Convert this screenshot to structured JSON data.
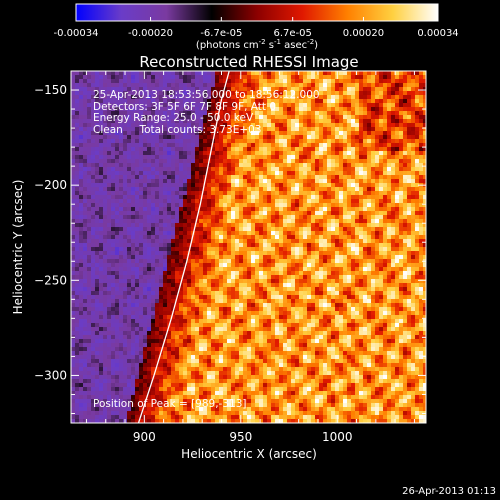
{
  "chart_data": {
    "type": "heatmap",
    "title": "Reconstructed RHESSI Image",
    "xlabel": "Heliocentric X (arcsec)",
    "ylabel": "Heliocentric Y (arcsec)",
    "xlim": [
      862,
      1046
    ],
    "ylim": [
      -325,
      -140
    ],
    "xticks": [
      900,
      950,
      1000
    ],
    "yticks": [
      -150,
      -200,
      -250,
      -300
    ],
    "colorbar": {
      "label": "(photons cm",
      "label_sup1": "-2",
      "label_mid": " s",
      "label_sup2": "-1",
      "label_mid2": " asec",
      "label_sup3": "-2",
      "label_end": ")",
      "min": -0.00034,
      "max": 0.00034,
      "ticks": [
        {
          "value": -0.00034,
          "label": "-0.00034"
        },
        {
          "value": -0.0002,
          "label": "-0.00020"
        },
        {
          "value": -6.7e-05,
          "label": "-6.7e-05"
        },
        {
          "value": 6.7e-05,
          "label": "6.7e-05"
        },
        {
          "value": 0.0002,
          "label": "0.00020"
        },
        {
          "value": 0.00034,
          "label": "0.00034"
        }
      ]
    },
    "annotations": {
      "time_range": "25-Apr-2013 18:53:56.000 to 18:56:12.000",
      "detectors": "Detectors: 3F 5F 6F 7F 8F 9F, Att 0",
      "energy": "Energy Range: 25.0 - 50.0 keV",
      "clean": "Clean     Total counts: 3.73E+03",
      "peak": "Position of Peak = [989,-313]"
    },
    "limb": {
      "points": [
        [
          897,
          -325
        ],
        [
          905,
          -300
        ],
        [
          914,
          -270
        ],
        [
          922,
          -240
        ],
        [
          929,
          -210
        ],
        [
          935,
          -180
        ],
        [
          940,
          -155
        ],
        [
          944,
          -140
        ]
      ]
    },
    "colors": {
      "background": "#000000",
      "limb": "#ffffff",
      "colormap": [
        "#0000ff",
        "#6a3cc8",
        "#7a3aa0",
        "#000000",
        "#8c0000",
        "#e01800",
        "#ff8000",
        "#ffd040",
        "#ffffff"
      ]
    },
    "footer_timestamp": "26-Apr-2013 01:13"
  }
}
